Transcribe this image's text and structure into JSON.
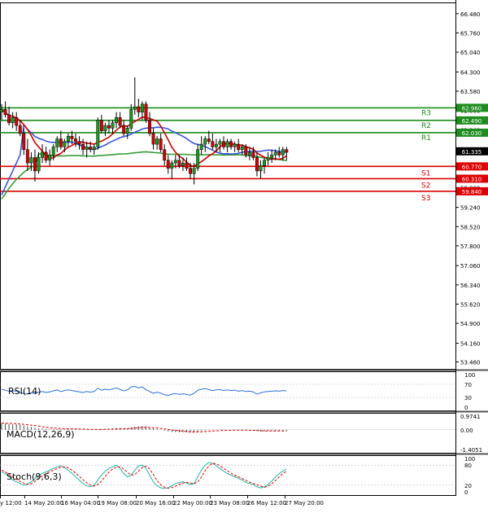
{
  "chart_data": {
    "type": "candlestick",
    "title": "",
    "price_axis": {
      "range": [
        53.2,
        66.9
      ],
      "ticks": [
        "66.480",
        "65.760",
        "65.040",
        "64.300",
        "63.580",
        "62.860",
        "62.140",
        "61.420",
        "60.700",
        "59.980",
        "59.240",
        "58.520",
        "57.800",
        "57.060",
        "56.340",
        "55.620",
        "54.900",
        "54.160",
        "53.460"
      ]
    },
    "time_axis": {
      "labels": [
        "y 12:00",
        "14 May 20:00",
        "16 May 04:00",
        "19 May 08:00",
        "20 May 16:00",
        "22 May 00:00",
        "23 May 08:00",
        "26 May 12:00",
        "27 May 20:00"
      ],
      "count": 80
    },
    "current_price": "61.335",
    "levels": [
      {
        "name": "R3",
        "value": 62.96,
        "price_label": "62.960",
        "color": "#1e8c1e"
      },
      {
        "name": "R2",
        "value": 62.49,
        "price_label": "62.490",
        "color": "#1e8c1e"
      },
      {
        "name": "R1",
        "value": 62.03,
        "price_label": "62.030",
        "color": "#1e8c1e"
      },
      {
        "name": "S1",
        "value": 60.77,
        "price_label": "60.770",
        "color": "#dd0000"
      },
      {
        "name": "S2",
        "value": 60.31,
        "price_label": "60.310",
        "color": "#dd0000"
      },
      {
        "name": "S3",
        "value": 59.84,
        "price_label": "59.840",
        "color": "#dd0000"
      }
    ],
    "candles": [
      [
        62.8,
        63.1,
        62.5,
        62.9
      ],
      [
        62.9,
        63.2,
        62.6,
        62.7
      ],
      [
        62.7,
        63.0,
        62.3,
        62.4
      ],
      [
        62.4,
        62.8,
        62.2,
        62.6
      ],
      [
        62.6,
        62.8,
        62.1,
        62.3
      ],
      [
        62.3,
        62.5,
        61.9,
        62.0
      ],
      [
        62.0,
        62.2,
        61.2,
        61.4
      ],
      [
        61.4,
        61.8,
        60.6,
        60.9
      ],
      [
        60.9,
        61.3,
        60.6,
        61.1
      ],
      [
        61.1,
        61.4,
        60.2,
        60.6
      ],
      [
        60.6,
        61.3,
        60.5,
        61.1
      ],
      [
        61.1,
        61.6,
        60.9,
        61.3
      ],
      [
        61.3,
        61.5,
        60.9,
        61.0
      ],
      [
        61.0,
        61.4,
        60.8,
        61.2
      ],
      [
        61.2,
        61.6,
        61.0,
        61.5
      ],
      [
        61.5,
        61.9,
        61.3,
        61.8
      ],
      [
        61.8,
        62.1,
        61.4,
        61.5
      ],
      [
        61.5,
        61.8,
        61.3,
        61.7
      ],
      [
        61.7,
        62.0,
        61.5,
        61.9
      ],
      [
        61.9,
        62.1,
        61.6,
        61.8
      ],
      [
        61.8,
        62.0,
        61.5,
        61.7
      ],
      [
        61.7,
        61.9,
        61.4,
        61.6
      ],
      [
        61.6,
        61.8,
        61.2,
        61.4
      ],
      [
        61.4,
        61.7,
        61.1,
        61.5
      ],
      [
        61.5,
        61.7,
        61.3,
        61.4
      ],
      [
        61.4,
        61.6,
        61.2,
        61.5
      ],
      [
        61.5,
        62.6,
        61.4,
        62.5
      ],
      [
        62.5,
        62.7,
        62.0,
        62.1
      ],
      [
        62.1,
        62.4,
        61.9,
        62.3
      ],
      [
        62.3,
        62.5,
        62.0,
        62.2
      ],
      [
        62.2,
        62.5,
        62.0,
        62.4
      ],
      [
        62.4,
        62.8,
        62.2,
        62.6
      ],
      [
        62.6,
        62.8,
        62.2,
        62.3
      ],
      [
        62.3,
        62.5,
        61.9,
        62.0
      ],
      [
        62.0,
        62.3,
        61.8,
        62.2
      ],
      [
        62.2,
        63.1,
        62.1,
        62.9
      ],
      [
        62.9,
        64.1,
        62.7,
        63.0
      ],
      [
        63.0,
        63.3,
        62.6,
        62.8
      ],
      [
        62.8,
        63.2,
        62.5,
        63.1
      ],
      [
        63.1,
        63.2,
        62.4,
        62.5
      ],
      [
        62.5,
        62.8,
        61.9,
        62.0
      ],
      [
        62.0,
        62.2,
        61.4,
        61.6
      ],
      [
        61.6,
        61.9,
        61.4,
        61.8
      ],
      [
        61.8,
        62.0,
        61.3,
        61.4
      ],
      [
        61.4,
        61.6,
        60.8,
        61.0
      ],
      [
        61.0,
        61.2,
        60.5,
        60.7
      ],
      [
        60.7,
        61.0,
        60.3,
        60.9
      ],
      [
        60.9,
        61.2,
        60.7,
        61.0
      ],
      [
        61.0,
        61.2,
        60.7,
        60.8
      ],
      [
        60.8,
        61.1,
        60.6,
        60.9
      ],
      [
        60.9,
        61.1,
        60.6,
        60.7
      ],
      [
        60.7,
        60.9,
        60.3,
        60.5
      ],
      [
        60.5,
        60.9,
        60.1,
        60.7
      ],
      [
        60.7,
        61.6,
        60.6,
        61.4
      ],
      [
        61.4,
        61.9,
        61.2,
        61.6
      ],
      [
        61.6,
        61.9,
        61.3,
        61.8
      ],
      [
        61.8,
        62.1,
        61.6,
        61.7
      ],
      [
        61.7,
        62.0,
        61.4,
        61.5
      ],
      [
        61.5,
        61.8,
        61.3,
        61.6
      ],
      [
        61.6,
        61.8,
        61.3,
        61.7
      ],
      [
        61.7,
        61.9,
        61.4,
        61.5
      ],
      [
        61.5,
        61.8,
        61.3,
        61.7
      ],
      [
        61.7,
        61.8,
        61.4,
        61.5
      ],
      [
        61.5,
        61.7,
        61.3,
        61.6
      ],
      [
        61.6,
        61.8,
        61.3,
        61.4
      ],
      [
        61.4,
        61.6,
        61.2,
        61.5
      ],
      [
        61.5,
        61.6,
        61.1,
        61.2
      ],
      [
        61.2,
        61.5,
        61.0,
        61.3
      ],
      [
        61.3,
        61.5,
        61.0,
        61.1
      ],
      [
        61.1,
        61.3,
        60.4,
        60.6
      ],
      [
        60.6,
        61.0,
        60.3,
        60.8
      ],
      [
        60.8,
        61.1,
        60.5,
        61.0
      ],
      [
        61.0,
        61.3,
        60.8,
        61.1
      ],
      [
        61.1,
        61.4,
        60.9,
        61.2
      ],
      [
        61.2,
        61.4,
        61.0,
        61.3
      ],
      [
        61.3,
        61.5,
        61.1,
        61.2
      ],
      [
        61.2,
        61.5,
        61.0,
        61.4
      ],
      [
        61.4,
        61.5,
        61.0,
        61.3
      ]
    ],
    "indicators": {
      "rsi": {
        "label": "RSI(14)",
        "ticks": [
          "100",
          "70",
          "30",
          "0"
        ],
        "range": [
          0,
          100
        ],
        "values": [
          55,
          52,
          49,
          51,
          48,
          45,
          42,
          40,
          44,
          41,
          46,
          48,
          45,
          47,
          50,
          53,
          48,
          51,
          53,
          51,
          49,
          47,
          45,
          48,
          46,
          48,
          58,
          52,
          55,
          53,
          56,
          59,
          54,
          50,
          53,
          62,
          64,
          59,
          62,
          54,
          48,
          43,
          46,
          43,
          38,
          36,
          40,
          42,
          39,
          41,
          39,
          37,
          42,
          52,
          55,
          57,
          54,
          51,
          53,
          54,
          51,
          53,
          51,
          52,
          49,
          51,
          48,
          49,
          47,
          40,
          44,
          47,
          48,
          49,
          50,
          49,
          51,
          50
        ]
      },
      "macd": {
        "label": "MACD(12,26,9)",
        "ticks": [
          "0.9741",
          "0.00",
          "-1.4051"
        ],
        "range": [
          -1.4051,
          0.9741
        ],
        "histogram": [
          0.45,
          0.44,
          0.42,
          0.4,
          0.38,
          0.35,
          0.3,
          0.24,
          0.2,
          0.14,
          0.11,
          0.08,
          0.05,
          0.04,
          0.04,
          0.05,
          0.04,
          0.04,
          0.05,
          0.05,
          0.04,
          0.03,
          0.01,
          0.0,
          -0.01,
          -0.02,
          0.03,
          0.05,
          0.07,
          0.08,
          0.1,
          0.13,
          0.13,
          0.11,
          0.11,
          0.17,
          0.23,
          0.25,
          0.28,
          0.25,
          0.18,
          0.1,
          0.06,
          0.01,
          -0.06,
          -0.12,
          -0.15,
          -0.16,
          -0.18,
          -0.18,
          -0.19,
          -0.21,
          -0.2,
          -0.13,
          -0.08,
          -0.04,
          -0.02,
          -0.02,
          -0.01,
          0.0,
          -0.01,
          0.0,
          -0.01,
          -0.01,
          -0.02,
          -0.02,
          -0.04,
          -0.04,
          -0.05,
          -0.1,
          -0.12,
          -0.11,
          -0.1,
          -0.09,
          -0.08,
          -0.08,
          -0.06,
          -0.06
        ],
        "signal": [
          0.48,
          0.47,
          0.46,
          0.45,
          0.43,
          0.41,
          0.39,
          0.36,
          0.33,
          0.3,
          0.26,
          0.22,
          0.18,
          0.15,
          0.12,
          0.1,
          0.09,
          0.08,
          0.07,
          0.07,
          0.06,
          0.06,
          0.05,
          0.04,
          0.03,
          0.02,
          0.02,
          0.02,
          0.03,
          0.04,
          0.05,
          0.06,
          0.07,
          0.08,
          0.09,
          0.1,
          0.12,
          0.14,
          0.16,
          0.17,
          0.17,
          0.15,
          0.13,
          0.1,
          0.07,
          0.03,
          -0.01,
          -0.04,
          -0.07,
          -0.1,
          -0.12,
          -0.14,
          -0.16,
          -0.16,
          -0.15,
          -0.13,
          -0.11,
          -0.09,
          -0.08,
          -0.06,
          -0.05,
          -0.04,
          -0.04,
          -0.03,
          -0.03,
          -0.03,
          -0.03,
          -0.04,
          -0.04,
          -0.05,
          -0.07,
          -0.08,
          -0.09,
          -0.09,
          -0.09,
          -0.09,
          -0.08,
          -0.08
        ]
      },
      "stoch": {
        "label": "Stoch(9,6,3)",
        "ticks": [
          "100",
          "80",
          "20",
          "0"
        ],
        "range": [
          0,
          100
        ],
        "k": [
          60,
          55,
          45,
          35,
          30,
          25,
          20,
          22,
          30,
          40,
          50,
          55,
          60,
          65,
          70,
          75,
          78,
          72,
          65,
          55,
          45,
          35,
          25,
          18,
          15,
          20,
          35,
          50,
          62,
          70,
          75,
          80,
          70,
          55,
          45,
          50,
          65,
          78,
          80,
          70,
          50,
          30,
          18,
          12,
          10,
          12,
          18,
          25,
          28,
          30,
          26,
          22,
          25,
          45,
          65,
          80,
          88,
          85,
          78,
          70,
          62,
          55,
          50,
          45,
          40,
          35,
          28,
          25,
          22,
          15,
          12,
          15,
          22,
          32,
          45,
          55,
          62,
          68
        ],
        "d": [
          65,
          60,
          52,
          44,
          37,
          31,
          26,
          23,
          24,
          31,
          40,
          48,
          55,
          60,
          65,
          70,
          74,
          75,
          72,
          65,
          56,
          46,
          36,
          27,
          20,
          17,
          22,
          32,
          46,
          59,
          68,
          74,
          75,
          68,
          58,
          50,
          52,
          62,
          73,
          77,
          68,
          52,
          34,
          21,
          14,
          11,
          13,
          17,
          22,
          26,
          28,
          27,
          24,
          30,
          44,
          63,
          78,
          85,
          84,
          78,
          70,
          63,
          56,
          50,
          45,
          40,
          34,
          29,
          25,
          21,
          17,
          14,
          17,
          24,
          34,
          45,
          55,
          62
        ]
      }
    }
  }
}
